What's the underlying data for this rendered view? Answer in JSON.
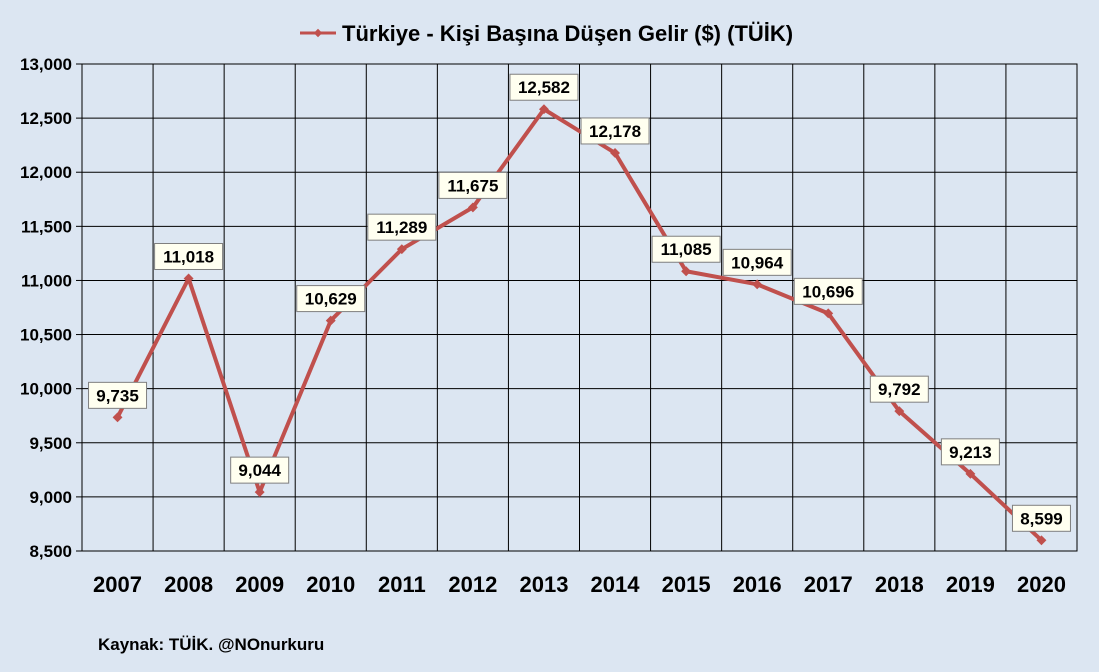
{
  "chart_data": {
    "type": "line",
    "title": "Türkiye - Kişi Başına Düşen Gelir ($) (TÜİK)",
    "categories": [
      "2007",
      "2008",
      "2009",
      "2010",
      "2011",
      "2012",
      "2013",
      "2014",
      "2015",
      "2016",
      "2017",
      "2018",
      "2019",
      "2020"
    ],
    "series": [
      {
        "name": "Türkiye - Kişi Başına Düşen Gelir ($) (TÜİK)",
        "values": [
          9735,
          11018,
          9044,
          10629,
          11289,
          11675,
          12582,
          12178,
          11085,
          10964,
          10696,
          9792,
          9213,
          8599
        ],
        "labels": [
          "9,735",
          "11,018",
          "9,044",
          "10,629",
          "11,289",
          "11,675",
          "12,582",
          "12,178",
          "11,085",
          "10,964",
          "10,696",
          "9,792",
          "9,213",
          "8,599"
        ]
      }
    ],
    "ylim": [
      8500,
      13000
    ],
    "yticks": [
      "8,500",
      "9,000",
      "9,500",
      "10,000",
      "10,500",
      "11,000",
      "11,500",
      "12,000",
      "12,500",
      "13,000"
    ],
    "grid": true,
    "legend_position": "top",
    "line_color": "#c0504d",
    "background_color": "#dce6f2",
    "source_note": "Kaynak: TÜİK. @NOnurkuru"
  }
}
